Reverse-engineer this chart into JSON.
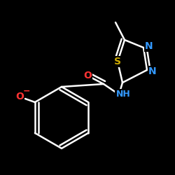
{
  "bg_color": "#000000",
  "bond_color": "#ffffff",
  "bw": 1.8,
  "atom_colors": {
    "S": "#ccaa00",
    "N": "#3399ff",
    "O": "#ff3333",
    "C": "#ffffff"
  },
  "figsize": [
    2.5,
    2.5
  ],
  "dpi": 100
}
